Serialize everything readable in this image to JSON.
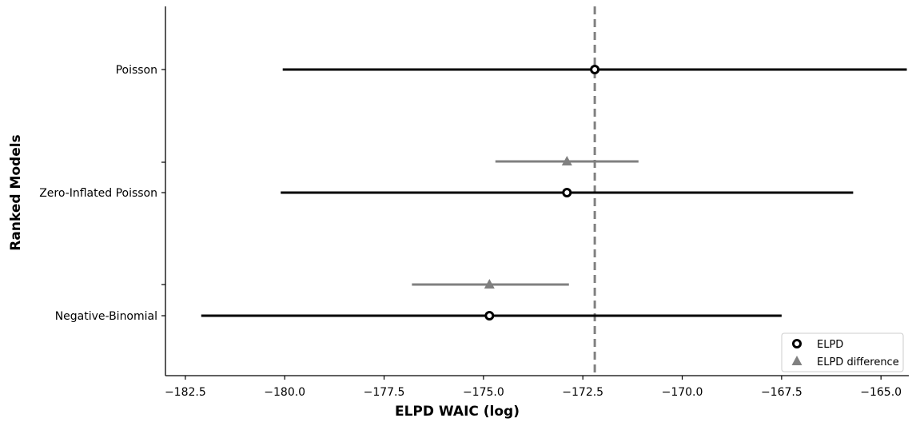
{
  "chart_data": {
    "type": "forest",
    "xlabel": "ELPD WAIC (log)",
    "ylabel": "Ranked Models",
    "xlim": [
      -183.0,
      -164.3
    ],
    "x_ticks": [
      -182.5,
      -180.0,
      -177.5,
      -175.0,
      -172.5,
      -170.0,
      -167.5,
      -165.0
    ],
    "x_tick_labels": [
      "−182.5",
      "−180.0",
      "−177.5",
      "−175.0",
      "−172.5",
      "−170.0",
      "−167.5",
      "−165.0"
    ],
    "models": [
      {
        "name": "Poisson",
        "elpd": -172.2,
        "low": -180.05,
        "high": -164.35
      },
      {
        "name": "Zero-Inflated Poisson",
        "elpd": -172.9,
        "low": -180.1,
        "high": -165.7,
        "diff_elpd": -172.9,
        "diff_low": -174.7,
        "diff_high": -171.1
      },
      {
        "name": "Negative-Binomial",
        "elpd": -174.85,
        "low": -182.1,
        "high": -167.5,
        "diff_elpd": -174.85,
        "diff_low": -176.8,
        "diff_high": -172.85
      }
    ],
    "reference_line": -172.2,
    "legend": {
      "position": "bottom-right",
      "entries": [
        "ELPD",
        "ELPD difference"
      ]
    },
    "colors": {
      "elpd": "#000000",
      "difference": "#808080",
      "reference": "#808080"
    },
    "grid": false
  }
}
